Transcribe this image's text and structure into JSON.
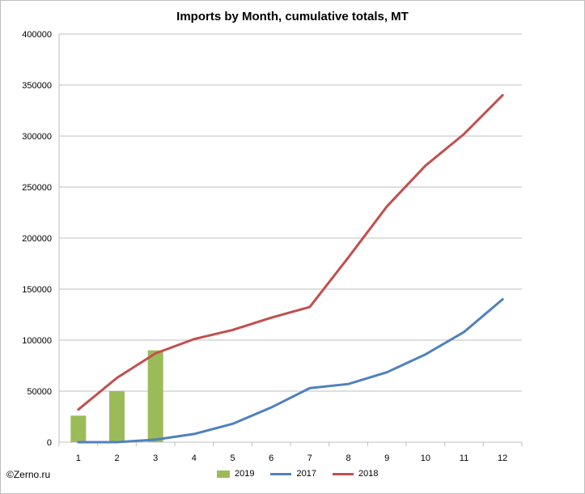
{
  "chart_data": {
    "type": "bar+line",
    "title": "Imports by Month, cumulative totals, MT",
    "categories": [
      "1",
      "2",
      "3",
      "4",
      "5",
      "6",
      "7",
      "8",
      "9",
      "10",
      "11",
      "12"
    ],
    "ylim": [
      0,
      400000
    ],
    "yticks": [
      "0",
      "50000",
      "100000",
      "150000",
      "200000",
      "250000",
      "300000",
      "350000",
      "400000"
    ],
    "ytick_values": [
      0,
      50000,
      100000,
      150000,
      200000,
      250000,
      300000,
      350000,
      400000
    ],
    "grid": true,
    "legend_position": "bottom",
    "bar_series": {
      "name": "2019",
      "color": "#9bbb59",
      "values": [
        26000,
        50000,
        90000
      ]
    },
    "line_series": [
      {
        "name": "2017",
        "color": "#4f81bd",
        "values": [
          0,
          0,
          2500,
          8000,
          18000,
          34000,
          53000,
          57000,
          68500,
          86000,
          108000,
          140000
        ]
      },
      {
        "name": "2018",
        "color": "#c0504d",
        "values": [
          32000,
          63000,
          87000,
          101000,
          110000,
          122000,
          132500,
          181000,
          231000,
          271000,
          302000,
          340000
        ]
      }
    ]
  },
  "watermark": "©Zerno.ru"
}
